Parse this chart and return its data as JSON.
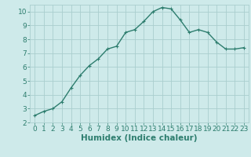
{
  "xlabel": "Humidex (Indice chaleur)",
  "x": [
    0,
    1,
    2,
    3,
    4,
    5,
    6,
    7,
    8,
    9,
    10,
    11,
    12,
    13,
    14,
    15,
    16,
    17,
    18,
    19,
    20,
    21,
    22,
    23
  ],
  "y": [
    2.5,
    2.8,
    3.0,
    3.5,
    4.5,
    5.4,
    6.1,
    6.6,
    7.3,
    7.5,
    8.5,
    8.7,
    9.3,
    10.0,
    10.3,
    10.2,
    9.4,
    8.5,
    8.7,
    8.5,
    7.8,
    7.3,
    7.3,
    7.4
  ],
  "line_color": "#2d7d6e",
  "marker": "+",
  "marker_size": 3,
  "marker_edge_width": 0.8,
  "line_width": 1.0,
  "bg_color": "#ceeaea",
  "grid_color": "#aacece",
  "tick_color": "#2d7d6e",
  "label_color": "#2d7d6e",
  "xlim": [
    -0.5,
    23.5
  ],
  "ylim": [
    2,
    10.5
  ],
  "yticks": [
    2,
    3,
    4,
    5,
    6,
    7,
    8,
    9,
    10
  ],
  "xticks": [
    0,
    1,
    2,
    3,
    4,
    5,
    6,
    7,
    8,
    9,
    10,
    11,
    12,
    13,
    14,
    15,
    16,
    17,
    18,
    19,
    20,
    21,
    22,
    23
  ],
  "xlabel_fontsize": 7.5,
  "tick_fontsize": 6.5,
  "xlabel_fontweight": "bold"
}
